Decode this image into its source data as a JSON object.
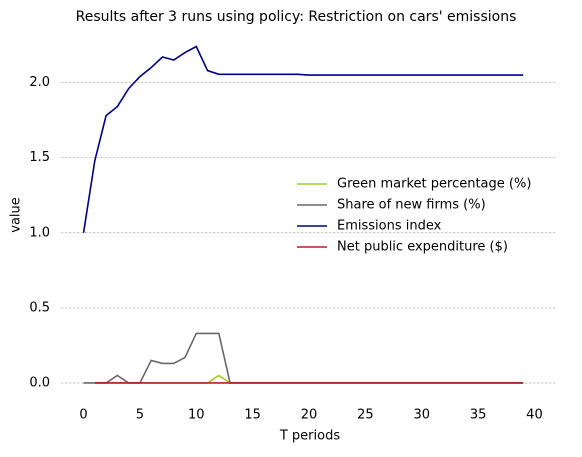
{
  "chart_data": {
    "type": "line",
    "title": "Results after 3 runs using policy: Restriction on cars' emissions",
    "xlabel": "T periods",
    "ylabel": "value",
    "x": [
      0,
      1,
      2,
      3,
      4,
      5,
      6,
      7,
      8,
      9,
      10,
      11,
      12,
      13,
      14,
      15,
      16,
      17,
      18,
      19,
      20,
      21,
      22,
      23,
      24,
      25,
      26,
      27,
      28,
      29,
      30,
      31,
      32,
      33,
      34,
      35,
      36,
      37,
      38,
      39
    ],
    "series": [
      {
        "name": "Green market percentage (%)",
        "color": "#9acd32",
        "values": [
          null,
          0,
          0,
          0,
          0,
          0,
          0,
          0,
          0,
          0,
          0,
          0,
          0.05,
          0,
          0,
          0,
          0,
          0,
          0,
          0,
          0,
          0,
          0,
          0,
          0,
          0,
          0,
          0,
          0,
          0,
          0,
          0,
          0,
          0,
          0,
          0,
          0,
          0,
          0,
          0
        ]
      },
      {
        "name": "Share of new firms (%)",
        "color": "#696969",
        "values": [
          0,
          0,
          0,
          0.05,
          0,
          0,
          0.15,
          0.13,
          0.13,
          0.17,
          0.33,
          0.33,
          0.33,
          0,
          0,
          0,
          0,
          0,
          0,
          0,
          0,
          0,
          0,
          0,
          0,
          0,
          0,
          0,
          0,
          0,
          0,
          0,
          0,
          0,
          0,
          0,
          0,
          0,
          0,
          0
        ]
      },
      {
        "name": "Emissions index",
        "color": "#000080",
        "values": [
          1.0,
          1.48,
          1.78,
          1.84,
          1.96,
          2.04,
          2.1,
          2.17,
          2.15,
          2.2,
          2.24,
          2.08,
          2.055,
          2.055,
          2.055,
          2.055,
          2.055,
          2.055,
          2.055,
          2.055,
          2.05,
          2.05,
          2.05,
          2.05,
          2.05,
          2.05,
          2.05,
          2.05,
          2.05,
          2.05,
          2.05,
          2.05,
          2.05,
          2.05,
          2.05,
          2.05,
          2.05,
          2.05,
          2.05,
          2.05
        ]
      },
      {
        "name": "Net public expenditure ($)",
        "color": "#b22222",
        "values": [
          null,
          0,
          0,
          0,
          0,
          0,
          0,
          0,
          0,
          0,
          0,
          0,
          0,
          0,
          0,
          0,
          0,
          0,
          0,
          0,
          0,
          0,
          0,
          0,
          0,
          0,
          0,
          0,
          0,
          0,
          0,
          0,
          0,
          0,
          0,
          0,
          0,
          0,
          0,
          0
        ]
      }
    ],
    "xlim": [
      -2,
      42
    ],
    "ylim": [
      -0.1,
      2.35
    ],
    "xticks": [
      0,
      5,
      10,
      15,
      20,
      25,
      30,
      35,
      40
    ],
    "yticks": [
      {
        "value": 0,
        "label": "0.0"
      },
      {
        "value": 0.5,
        "label": "0.5"
      },
      {
        "value": 1,
        "label": "1.0"
      },
      {
        "value": 1.5,
        "label": "1.5"
      },
      {
        "value": 2,
        "label": "2.0"
      }
    ],
    "grid": true,
    "legend": "right"
  }
}
